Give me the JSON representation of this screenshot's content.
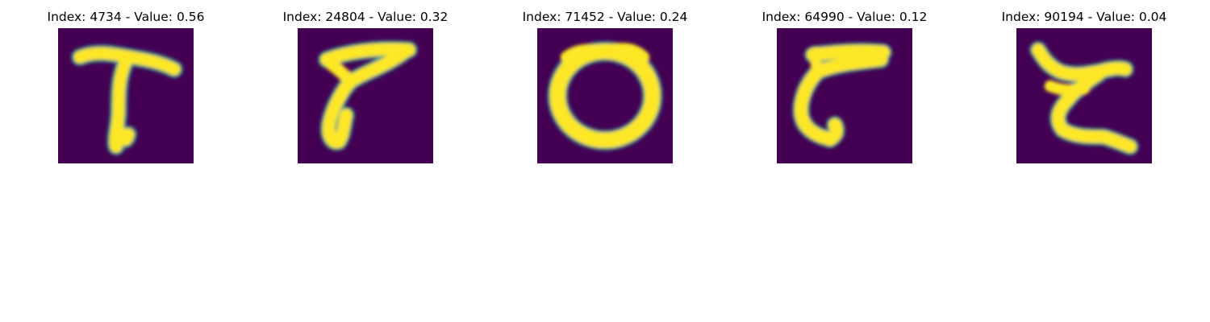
{
  "colors": {
    "background": "#440154",
    "mid": "#21918c",
    "stroke": "#fde725"
  },
  "panels": [
    {
      "title": "Index: 4734 - Value: 0.56",
      "icon": "digit-seven-icon"
    },
    {
      "title": "Index: 24804 - Value: 0.32",
      "icon": "digit-seven-icon"
    },
    {
      "title": "Index: 71452 - Value: 0.24",
      "icon": "digit-zero-icon"
    },
    {
      "title": "Index: 64990 - Value: 0.12",
      "icon": "digit-seven-icon"
    },
    {
      "title": "Index: 90194 - Value: 0.04",
      "icon": "digit-seven-crossed-icon"
    }
  ]
}
